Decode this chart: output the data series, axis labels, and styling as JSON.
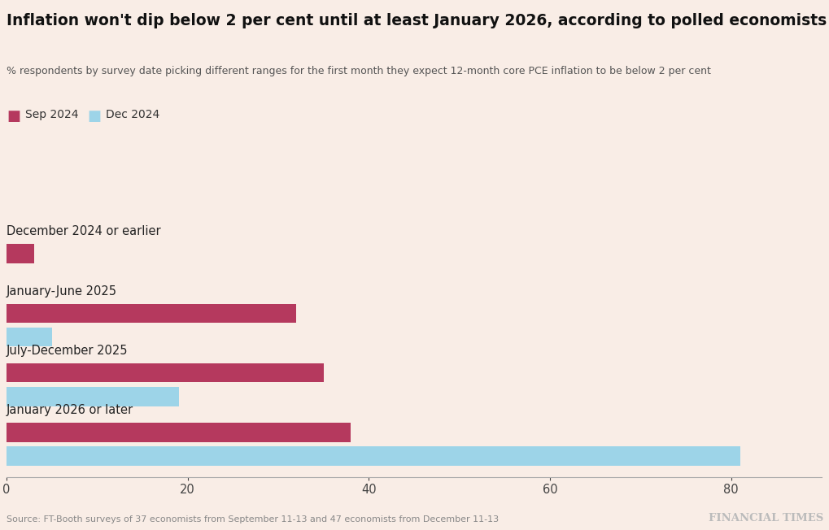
{
  "title": "Inflation won't dip below 2 per cent until at least January 2026, according to polled economists",
  "subtitle": "% respondents by survey date picking different ranges for the first month they expect 12-month core PCE inflation to be below 2 per cent",
  "categories": [
    "December 2024 or earlier",
    "January-June 2025",
    "July-December 2025",
    "January 2026 or later"
  ],
  "sep2024": [
    3,
    32,
    35,
    38
  ],
  "dec2024": [
    0,
    5,
    19,
    81
  ],
  "sep_color": "#b5395e",
  "dec_color": "#9dd4e8",
  "background_color": "#f9ede6",
  "xlim": [
    0,
    90
  ],
  "xticks": [
    0,
    20,
    40,
    60,
    80
  ],
  "legend_sep": "Sep 2024",
  "legend_dec": "Dec 2024",
  "source": "Source: FT-Booth surveys of 37 economists from September 11-13 and 47 economists from December 11-13",
  "ft_logo": "FINANCIAL TIMES",
  "bar_height": 0.32
}
